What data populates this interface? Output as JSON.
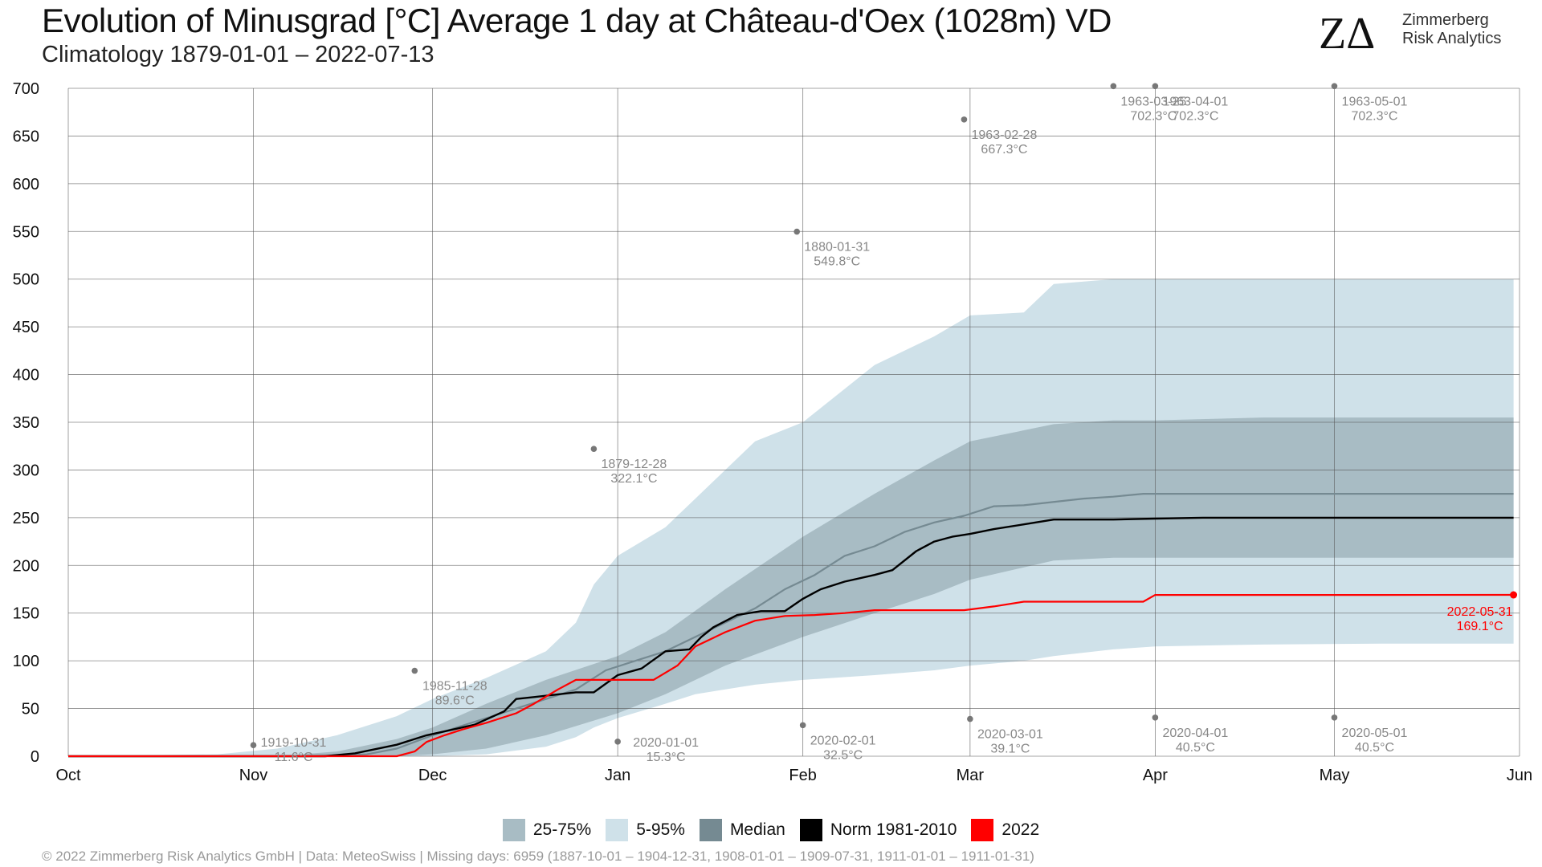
{
  "header": {
    "title": "Evolution of Minusgrad [°C] Average 1 day at Château-d'Oex (1028m) VD",
    "subtitle": "Climatology 1879-01-01 – 2022-07-13"
  },
  "logo": {
    "mark": "ZΔ",
    "line1": "Zimmerberg",
    "line2": "Risk Analytics"
  },
  "footer": "©  2022 Zimmerberg Risk Analytics GmbH | Data: MeteoSwiss | Missing days: 6959 (1887-10-01 – 1904-12-31, 1908-01-01 – 1909-07-31, 1911-01-01 – 1911-01-31)",
  "legend": [
    {
      "key": "q25_75",
      "label": "25-75%",
      "color": "#a8bcc4"
    },
    {
      "key": "q5_95",
      "label": "5-95%",
      "color": "#cfe1e9"
    },
    {
      "key": "median",
      "label": "Median",
      "color": "#758a92"
    },
    {
      "key": "norm",
      "label": "Norm 1981-2010",
      "color": "#000000"
    },
    {
      "key": "y2022",
      "label": "2022",
      "color": "#ff0000"
    }
  ],
  "colors": {
    "band_5_95": "#cfe1e9",
    "band_25_75": "#a8bcc4",
    "median": "#758a92",
    "norm": "#000000",
    "y2022": "#ff0000",
    "annotation": "#888888",
    "grid": "#555555"
  },
  "chart_data": {
    "type": "area",
    "x_unit": "days since Oct 1",
    "xlim": [
      0,
      243
    ],
    "ylim": [
      0,
      700
    ],
    "x_ticks": [
      {
        "label": "Oct",
        "day": 0
      },
      {
        "label": "Nov",
        "day": 31
      },
      {
        "label": "Dec",
        "day": 61
      },
      {
        "label": "Jan",
        "day": 92
      },
      {
        "label": "Feb",
        "day": 123
      },
      {
        "label": "Mar",
        "day": 151
      },
      {
        "label": "Apr",
        "day": 182
      },
      {
        "label": "May",
        "day": 212
      },
      {
        "label": "Jun",
        "day": 243
      }
    ],
    "y_ticks": [
      0,
      50,
      100,
      150,
      200,
      250,
      300,
      350,
      400,
      450,
      500,
      550,
      600,
      650,
      700
    ],
    "grid": true,
    "series": [
      {
        "name": "5-95%",
        "kind": "band",
        "x": [
          0,
          25,
          35,
          45,
          55,
          61,
          70,
          80,
          85,
          88,
          92,
          100,
          105,
          115,
          123,
          135,
          145,
          151,
          160,
          165,
          175,
          182,
          190,
          200,
          220,
          242
        ],
        "lower": [
          0,
          0,
          0,
          0,
          0,
          0,
          2,
          10,
          20,
          30,
          40,
          55,
          65,
          75,
          80,
          85,
          90,
          95,
          100,
          105,
          112,
          115,
          116,
          117,
          118,
          118
        ],
        "upper": [
          0,
          2,
          8,
          22,
          42,
          60,
          82,
          110,
          140,
          180,
          210,
          240,
          270,
          330,
          350,
          410,
          440,
          462,
          465,
          495,
          500,
          500,
          500,
          500,
          500,
          500
        ]
      },
      {
        "name": "25-75%",
        "kind": "band",
        "x": [
          0,
          35,
          45,
          55,
          61,
          70,
          80,
          92,
          100,
          110,
          123,
          135,
          145,
          151,
          165,
          175,
          182,
          200,
          242
        ],
        "lower": [
          0,
          0,
          0,
          0,
          2,
          8,
          22,
          45,
          65,
          95,
          125,
          150,
          170,
          185,
          205,
          208,
          208,
          208,
          208
        ],
        "upper": [
          0,
          0,
          5,
          18,
          30,
          55,
          80,
          105,
          130,
          175,
          230,
          275,
          310,
          330,
          348,
          352,
          352,
          355,
          355
        ]
      },
      {
        "name": "Median",
        "x": [
          0,
          40,
          50,
          55,
          61,
          65,
          70,
          75,
          80,
          85,
          90,
          95,
          100,
          105,
          110,
          115,
          120,
          125,
          130,
          135,
          140,
          145,
          150,
          155,
          160,
          170,
          175,
          180,
          190,
          200,
          242
        ],
        "y": [
          0,
          0,
          2,
          8,
          22,
          30,
          40,
          50,
          60,
          70,
          90,
          100,
          110,
          125,
          140,
          155,
          175,
          190,
          210,
          220,
          235,
          245,
          252,
          262,
          263,
          270,
          272,
          275,
          275,
          275,
          275
        ]
      },
      {
        "name": "Norm 1981-2010",
        "x": [
          0,
          43,
          48,
          55,
          60,
          63,
          68,
          73,
          75,
          78,
          85,
          88,
          92,
          96,
          100,
          104,
          106,
          108,
          112,
          116,
          120,
          123,
          126,
          130,
          135,
          138,
          142,
          145,
          148,
          151,
          155,
          160,
          165,
          175,
          182,
          190,
          200,
          242
        ],
        "y": [
          0,
          0,
          3,
          12,
          22,
          26,
          33,
          47,
          60,
          62,
          67,
          67,
          85,
          92,
          110,
          112,
          125,
          135,
          148,
          152,
          152,
          165,
          175,
          183,
          190,
          195,
          215,
          225,
          230,
          233,
          238,
          243,
          248,
          248,
          249,
          250,
          250,
          250
        ]
      },
      {
        "name": "2022",
        "x": [
          0,
          55,
          58,
          60,
          63,
          66,
          70,
          75,
          78,
          82,
          85,
          88,
          92,
          95,
          98,
          102,
          105,
          110,
          115,
          120,
          125,
          130,
          135,
          140,
          145,
          150,
          155,
          160,
          170,
          180,
          182,
          190,
          200,
          210,
          220,
          242
        ],
        "y": [
          0,
          0,
          5,
          15,
          22,
          28,
          35,
          45,
          55,
          70,
          80,
          80,
          80,
          80,
          80,
          95,
          115,
          130,
          142,
          147,
          148,
          150,
          153,
          153,
          153,
          153,
          157,
          162,
          162,
          162,
          169,
          169,
          169,
          169,
          169,
          169.1
        ]
      }
    ],
    "records": [
      {
        "date": "1919-10-31",
        "value": "11.6°C",
        "x": 31,
        "y": 11.6
      },
      {
        "date": "1985-11-28",
        "value": "89.6°C",
        "x": 58,
        "y": 89.6
      },
      {
        "date": "1879-12-28",
        "value": "322.1°C",
        "x": 88,
        "y": 322.1
      },
      {
        "date": "1880-01-31",
        "value": "549.8°C",
        "x": 122,
        "y": 549.8
      },
      {
        "date": "1963-02-28",
        "value": "667.3°C",
        "x": 150,
        "y": 667.3
      },
      {
        "date": "1963-03-25",
        "value": "702.3°C",
        "x": 175,
        "y": 702.3
      },
      {
        "date": "1963-04-01",
        "value": "702.3°C",
        "x": 182,
        "y": 702.3
      },
      {
        "date": "1963-05-01",
        "value": "702.3°C",
        "x": 212,
        "y": 702.3
      },
      {
        "date": "2020-01-01",
        "value": "15.3°C",
        "x": 92,
        "y": 15.3
      },
      {
        "date": "2020-02-01",
        "value": "32.5°C",
        "x": 123,
        "y": 32.5
      },
      {
        "date": "2020-03-01",
        "value": "39.1°C",
        "x": 151,
        "y": 39.1
      },
      {
        "date": "2020-04-01",
        "value": "40.5°C",
        "x": 182,
        "y": 40.5
      },
      {
        "date": "2020-05-01",
        "value": "40.5°C",
        "x": 212,
        "y": 40.5
      }
    ],
    "current": {
      "date": "2022-05-31",
      "value": "169.1°C",
      "x": 242,
      "y": 169.1
    }
  }
}
